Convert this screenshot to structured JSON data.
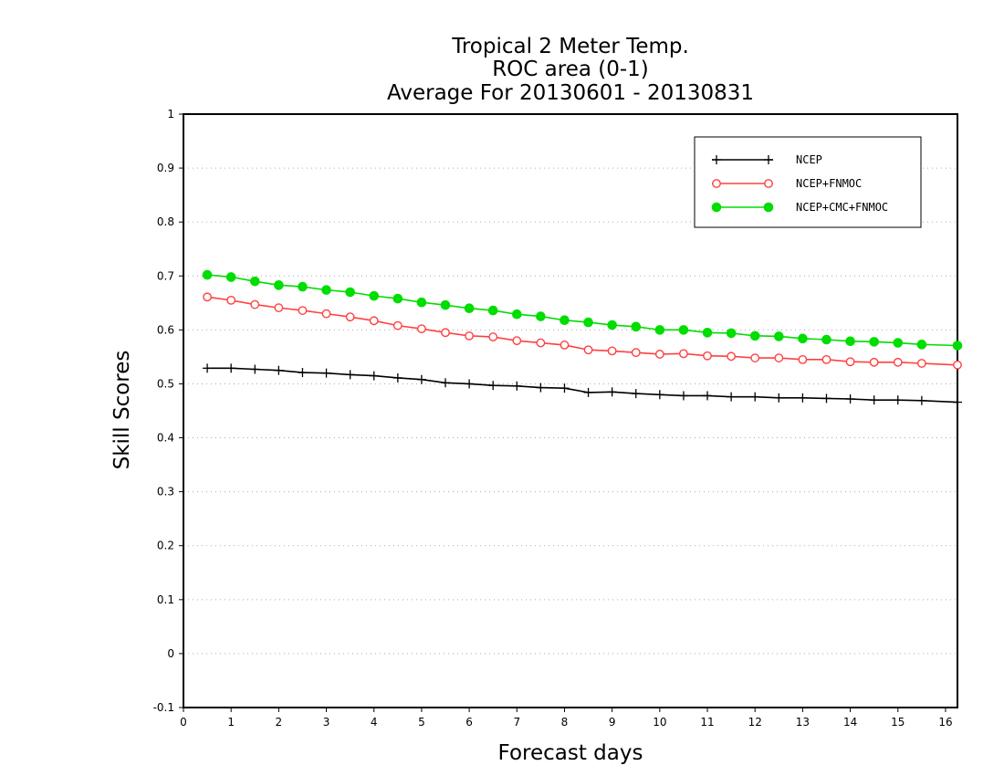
{
  "chart_data": {
    "type": "line",
    "title": [
      "Tropical 2 Meter Temp.",
      "ROC area (0-1)",
      "Average For 20130601 - 20130831"
    ],
    "xlabel": "Forecast days",
    "ylabel": "Skill Scores",
    "xlim": [
      0,
      16.25
    ],
    "ylim": [
      -0.1,
      1
    ],
    "xticks": [
      0,
      1,
      2,
      3,
      4,
      5,
      6,
      7,
      8,
      9,
      10,
      11,
      12,
      13,
      14,
      15,
      16
    ],
    "yticks": [
      -0.1,
      0,
      0.1,
      0.2,
      0.3,
      0.4,
      0.5,
      0.6,
      0.7,
      0.8,
      0.9,
      1
    ],
    "ytick_labels": [
      "-0.1",
      "0",
      "0.1",
      "0.2",
      "0.3",
      "0.4",
      "0.5",
      "0.6",
      "0.7",
      "0.8",
      "0.9",
      "1"
    ],
    "grid": "horizontal dotted",
    "legend_position": "top-right",
    "x": [
      0.5,
      1,
      1.5,
      2,
      2.5,
      3,
      3.5,
      4,
      4.5,
      5,
      5.5,
      6,
      6.5,
      7,
      7.5,
      8,
      8.5,
      9,
      9.5,
      10,
      10.5,
      11,
      11.5,
      12,
      12.5,
      13,
      13.5,
      14,
      14.5,
      15,
      15.5,
      16.25
    ],
    "series": [
      {
        "name": "NCEP",
        "color": "#000000",
        "marker": "plus",
        "values": [
          0.529,
          0.529,
          0.527,
          0.525,
          0.521,
          0.52,
          0.517,
          0.515,
          0.511,
          0.508,
          0.502,
          0.5,
          0.497,
          0.496,
          0.493,
          0.492,
          0.484,
          0.485,
          0.482,
          0.48,
          0.478,
          0.478,
          0.476,
          0.476,
          0.474,
          0.474,
          0.473,
          0.472,
          0.47,
          0.47,
          0.469,
          0.466
        ]
      },
      {
        "name": "NCEP+FNMOC",
        "color": "#ff4040",
        "marker": "open-circle",
        "values": [
          0.661,
          0.655,
          0.647,
          0.641,
          0.636,
          0.63,
          0.624,
          0.617,
          0.608,
          0.602,
          0.595,
          0.589,
          0.587,
          0.58,
          0.576,
          0.572,
          0.563,
          0.561,
          0.558,
          0.555,
          0.556,
          0.552,
          0.551,
          0.548,
          0.548,
          0.545,
          0.545,
          0.541,
          0.54,
          0.54,
          0.538,
          0.535
        ]
      },
      {
        "name": "NCEP+CMC+FNMOC",
        "color": "#00dd00",
        "marker": "filled-circle",
        "values": [
          0.702,
          0.698,
          0.69,
          0.683,
          0.68,
          0.674,
          0.67,
          0.663,
          0.658,
          0.651,
          0.646,
          0.64,
          0.636,
          0.629,
          0.625,
          0.618,
          0.614,
          0.609,
          0.606,
          0.6,
          0.6,
          0.595,
          0.594,
          0.589,
          0.588,
          0.584,
          0.582,
          0.579,
          0.578,
          0.576,
          0.573,
          0.571
        ]
      }
    ]
  }
}
